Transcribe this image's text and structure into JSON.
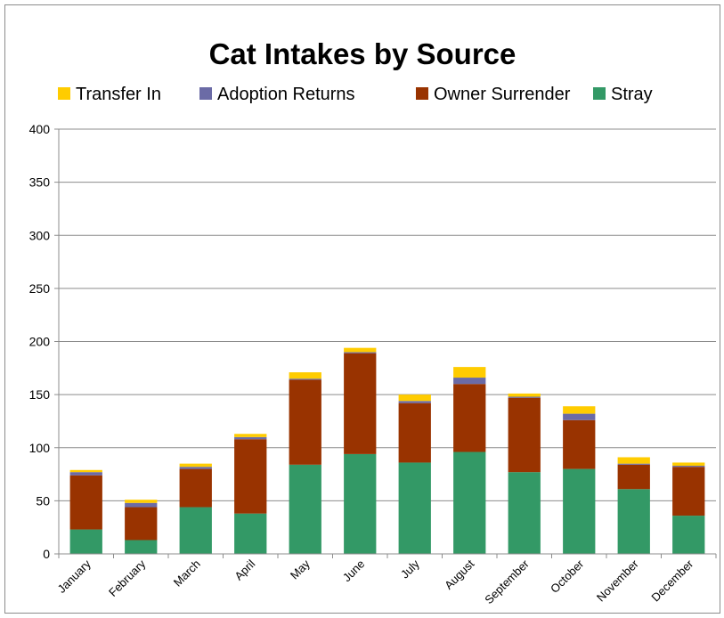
{
  "chart_data": {
    "type": "bar",
    "stacked": true,
    "title": "Cat Intakes by Source",
    "xlabel": "",
    "ylabel": "",
    "categories": [
      "January",
      "February",
      "March",
      "April",
      "May",
      "June",
      "July",
      "August",
      "September",
      "October",
      "November",
      "December"
    ],
    "series": [
      {
        "name": "Stray",
        "color": "#339966",
        "values": [
          23,
          13,
          44,
          38,
          84,
          94,
          86,
          96,
          77,
          80,
          61,
          36
        ]
      },
      {
        "name": "Owner Surrender",
        "color": "#993300",
        "values": [
          51,
          31,
          36,
          70,
          80,
          95,
          56,
          64,
          70,
          46,
          23,
          46
        ]
      },
      {
        "name": "Adoption Returns",
        "color": "#6b6ba6",
        "values": [
          3,
          4,
          2,
          2,
          1,
          1,
          2,
          6,
          1,
          6,
          1,
          1
        ]
      },
      {
        "name": "Transfer In",
        "color": "#ffcc00",
        "values": [
          2,
          3,
          3,
          3,
          6,
          4,
          6,
          10,
          3,
          7,
          6,
          3
        ]
      }
    ],
    "legend_order": [
      "Transfer In",
      "Adoption Returns",
      "Owner Surrender",
      "Stray"
    ],
    "legend_position": "top",
    "ylim": [
      0,
      400
    ],
    "yticks": [
      0,
      50,
      100,
      150,
      200,
      250,
      300,
      350,
      400
    ],
    "grid": true
  }
}
